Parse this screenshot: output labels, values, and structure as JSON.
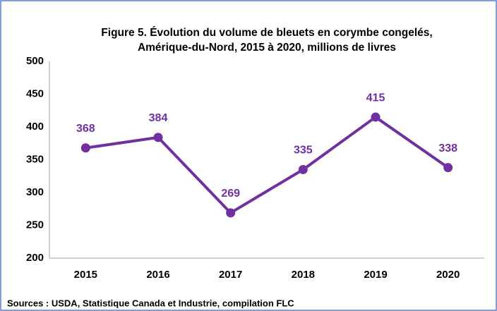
{
  "chart_data": {
    "type": "line",
    "title": [
      "Figure 5. Évolution du volume de bleuets en corymbe congelés,",
      "Amérique-du-Nord, 2015 à 2020, millions de livres"
    ],
    "categories": [
      "2015",
      "2016",
      "2017",
      "2018",
      "2019",
      "2020"
    ],
    "series": [
      {
        "name": "Volume",
        "color": "#7030a0",
        "values": [
          368,
          384,
          269,
          335,
          415,
          338
        ]
      }
    ],
    "ylim": [
      200,
      500
    ],
    "yticks": [
      200,
      250,
      300,
      350,
      400,
      450,
      500
    ],
    "grid": false,
    "note": "Sources : USDA, Statistique Canada et Industrie, compilation FLC"
  }
}
